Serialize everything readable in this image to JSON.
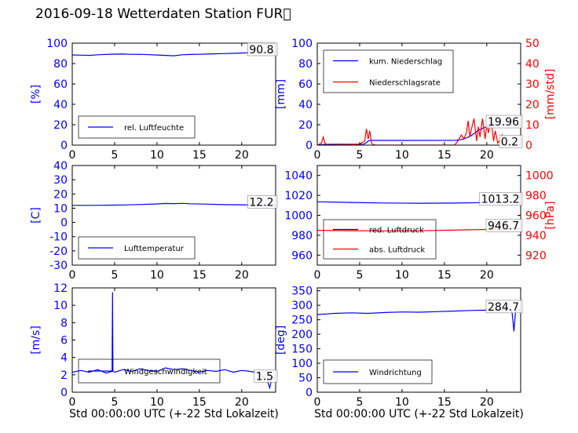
{
  "page": {
    "title": "2016-09-18 Wetterdaten Station FUR\u0000"
  },
  "colors": {
    "blue": "#0000ff",
    "red": "#ff0000",
    "light_blue": "#7f7fff"
  },
  "chart_data": [
    {
      "id": "humidity",
      "type": "line",
      "xlim": [
        0,
        24
      ],
      "xticks": [
        0,
        5,
        10,
        15,
        20
      ],
      "ylim": [
        0,
        100
      ],
      "yticks": [
        0,
        20,
        40,
        60,
        80,
        100
      ],
      "ylabel": "[%]",
      "legend": {
        "position": "bottom-left",
        "entries": [
          "rel. Luftfeuchte"
        ]
      },
      "annotations": [
        {
          "text": "90.8",
          "x": 22,
          "y": 90.8
        }
      ],
      "series": [
        {
          "name": "rel. Luftfeuchte",
          "color": "#0000ff",
          "x": [
            0,
            1,
            2,
            3,
            4,
            5,
            6,
            7,
            8,
            9,
            10,
            11,
            12,
            13,
            14,
            15,
            16,
            17,
            18,
            19,
            20,
            21,
            22,
            23,
            24
          ],
          "y": [
            88.5,
            88.2,
            88.0,
            88.6,
            88.9,
            89.2,
            89.3,
            89.0,
            89.1,
            88.7,
            88.4,
            88.0,
            87.6,
            88.6,
            88.9,
            89.1,
            89.3,
            89.6,
            89.8,
            90.0,
            90.3,
            90.6,
            90.8,
            90.8,
            90.8
          ]
        }
      ]
    },
    {
      "id": "precipitation",
      "type": "line",
      "xlim": [
        0,
        24
      ],
      "xticks": [
        0,
        5,
        10,
        15,
        20
      ],
      "ylim": [
        0,
        100
      ],
      "yticks": [
        0,
        20,
        40,
        60,
        80,
        100
      ],
      "ylabel": "[mm]",
      "ylim_right": [
        0,
        50
      ],
      "yticks_right": [
        0,
        10,
        20,
        30,
        40,
        50
      ],
      "ylabel_right": "[mm/std]",
      "legend": {
        "position": "top-left",
        "entries": [
          "kum. Niederschlag",
          "Niederschlagsrate"
        ]
      },
      "annotations": [
        {
          "text": "19.96",
          "x": 21,
          "y": 19.96
        },
        {
          "text": "0.2",
          "x": 21.5,
          "y": 0.2
        }
      ],
      "series": [
        {
          "name": "kum. Niederschlag",
          "color": "#0000ff",
          "axis": "left",
          "x": [
            0,
            0.4,
            0.8,
            1.2,
            5.5,
            5.8,
            6.0,
            6.2,
            16.4,
            17.0,
            17.6,
            18.2,
            18.6,
            19.0,
            19.6,
            20.0,
            20.6,
            21.0,
            22.0,
            24.0
          ],
          "y": [
            0,
            0.3,
            0.6,
            0.8,
            1.0,
            2.5,
            4.0,
            4.6,
            4.7,
            5.5,
            7.0,
            9.5,
            12.0,
            14.5,
            16.8,
            18.0,
            19.0,
            19.6,
            19.96,
            19.96
          ]
        },
        {
          "name": "Niederschlagsrate",
          "color": "#ff0000",
          "axis": "right",
          "x": [
            0,
            0.5,
            0.7,
            0.9,
            1.2,
            3.0,
            5.0,
            5.6,
            5.8,
            6.0,
            6.2,
            6.4,
            6.6,
            7.0,
            10.0,
            16.2,
            16.6,
            17.0,
            17.3,
            17.6,
            17.8,
            18.0,
            18.2,
            18.5,
            18.8,
            19.0,
            19.2,
            19.5,
            19.8,
            20.0,
            20.2,
            20.5,
            20.8,
            21.0,
            21.3,
            21.6,
            21.8,
            22.0,
            22.5,
            23.0,
            23.5,
            24.0
          ],
          "y": [
            0,
            1,
            4,
            1,
            0,
            0.2,
            0.5,
            2,
            8,
            3,
            7,
            1,
            0.2,
            0,
            0,
            0,
            2,
            5,
            3,
            6,
            12,
            4,
            8,
            13,
            2,
            9,
            4,
            13,
            3,
            10,
            6,
            13,
            2,
            7,
            1,
            3,
            5,
            0.5,
            0.2,
            0.3,
            0.1,
            0.2
          ]
        }
      ]
    },
    {
      "id": "temperature",
      "type": "line",
      "xlim": [
        0,
        24
      ],
      "xticks": [
        0,
        5,
        10,
        15,
        20
      ],
      "ylim": [
        -30,
        40
      ],
      "yticks": [
        -30,
        -20,
        -10,
        0,
        10,
        20,
        30,
        40
      ],
      "ylabel": "[C]",
      "legend": {
        "position": "bottom-left",
        "entries": [
          "Lufttemperatur"
        ]
      },
      "annotations": [
        {
          "text": "12.2",
          "x": 22,
          "y": 12.2
        }
      ],
      "series": [
        {
          "name": "Lufttemperatur",
          "color": "#0000ff",
          "x": [
            0,
            2,
            4,
            6,
            8,
            10,
            11,
            12,
            13,
            14,
            16,
            18,
            20,
            22,
            24
          ],
          "y": [
            12.0,
            12.0,
            12.1,
            12.3,
            12.6,
            13.0,
            13.3,
            13.2,
            13.4,
            13.1,
            12.8,
            12.5,
            12.4,
            12.2,
            12.2
          ]
        }
      ]
    },
    {
      "id": "pressure",
      "type": "line",
      "xlim": [
        0,
        24
      ],
      "xticks": [
        0,
        5,
        10,
        15,
        20
      ],
      "ylim": [
        950,
        1050
      ],
      "yticks": [
        960,
        980,
        1000,
        1020,
        1040
      ],
      "ylim_right": [
        910,
        1010
      ],
      "yticks_right": [
        920,
        940,
        960,
        980,
        1000
      ],
      "ylabel_right": "[hPa]",
      "legend": {
        "position": "bottom-left",
        "entries": [
          "red. Luftdruck",
          "abs. Luftdruck"
        ]
      },
      "annotations": [
        {
          "text": "1013.2",
          "x": 20,
          "y": 1013.2
        },
        {
          "text": "946.7",
          "x": 20,
          "y": 946.7
        }
      ],
      "series": [
        {
          "name": "red. Luftdruck",
          "color": "#0000ff",
          "axis": "left",
          "x": [
            0,
            4,
            8,
            12,
            16,
            20,
            24
          ],
          "y": [
            1013.6,
            1012.9,
            1012.4,
            1012.1,
            1012.3,
            1012.8,
            1013.2
          ]
        },
        {
          "name": "abs. Luftdruck",
          "color": "#ff0000",
          "axis": "right",
          "x": [
            0,
            4,
            8,
            12,
            16,
            20,
            24
          ],
          "y": [
            945.0,
            944.6,
            944.4,
            944.5,
            945.1,
            945.8,
            946.7
          ]
        }
      ]
    },
    {
      "id": "wind_speed",
      "type": "line",
      "xlim": [
        0,
        24
      ],
      "xticks": [
        0,
        5,
        10,
        15,
        20
      ],
      "xlabel": "Std 00:00:00 UTC (+-22 Std Lokalzeit)",
      "ylim": [
        0,
        12
      ],
      "yticks": [
        0,
        2,
        4,
        6,
        8,
        10,
        12
      ],
      "ylabel": "[m/s]",
      "legend": {
        "position": "bottom-left",
        "entries": [
          "Windgeschwindigkeit"
        ]
      },
      "annotations": [
        {
          "text": "1.5",
          "x": 22,
          "y": 1.5
        }
      ],
      "series": [
        {
          "name": "Windgeschwindigkeit",
          "color": "#0000ff",
          "x": [
            0,
            1,
            2,
            3,
            4,
            4.7,
            4.75,
            4.8,
            5,
            6,
            7,
            8,
            9,
            10,
            11,
            12,
            13,
            14,
            15,
            16,
            17,
            18,
            19,
            20,
            21,
            22,
            22.5,
            23,
            23.3,
            23.6,
            24
          ],
          "y": [
            2.3,
            2.5,
            2.3,
            2.6,
            2.2,
            2.4,
            11.5,
            2.4,
            2.3,
            2.6,
            2.4,
            2.7,
            2.5,
            2.4,
            2.8,
            2.6,
            2.7,
            2.5,
            2.3,
            2.5,
            2.4,
            2.6,
            2.3,
            2.5,
            2.4,
            2.2,
            1.8,
            1.4,
            0.5,
            1.8,
            1.5
          ]
        }
      ]
    },
    {
      "id": "wind_direction",
      "type": "line",
      "xlim": [
        0,
        24
      ],
      "xticks": [
        0,
        5,
        10,
        15,
        20
      ],
      "xlabel": "Std 00:00:00 UTC (+-22 Std Lokalzeit)",
      "ylim": [
        0,
        360
      ],
      "yticks": [
        0,
        50,
        100,
        150,
        200,
        250,
        300,
        350
      ],
      "ylabel": "[deg]",
      "legend": {
        "position": "bottom-left",
        "entries": [
          "Windrichtung"
        ]
      },
      "annotations": [
        {
          "text": "284.7",
          "x": 21,
          "y": 284.7
        }
      ],
      "series": [
        {
          "name": "Windrichtung",
          "color": "#0000ff",
          "x": [
            0,
            1,
            2,
            4,
            6,
            8,
            10,
            12,
            14,
            16,
            18,
            20,
            22,
            22.8,
            23,
            23.2,
            23.4,
            23.6,
            24
          ],
          "y": [
            268,
            270,
            272,
            274,
            272,
            275,
            277,
            276,
            278,
            280,
            282,
            283,
            285,
            286,
            272,
            210,
            280,
            282,
            284.7
          ]
        }
      ]
    }
  ]
}
